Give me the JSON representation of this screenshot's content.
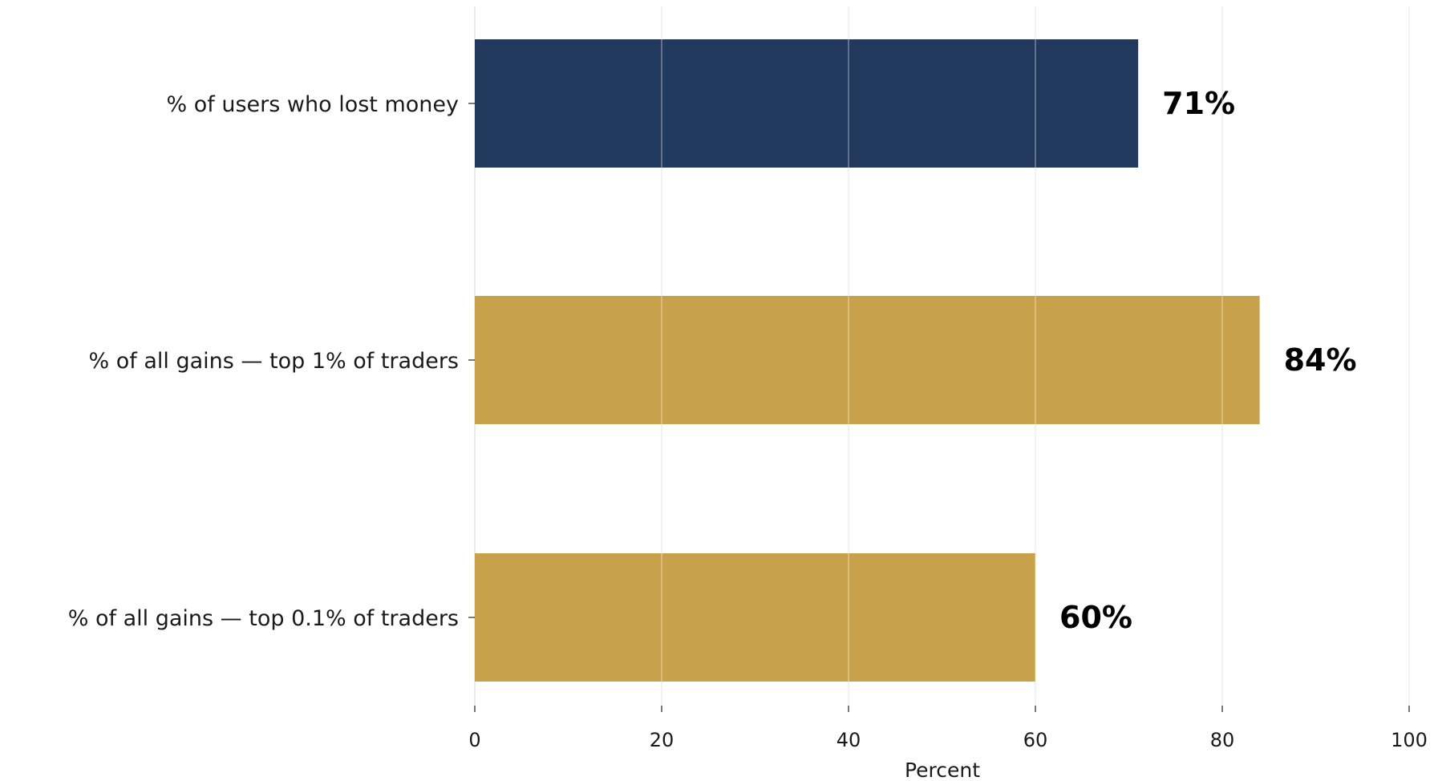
{
  "chart_data": {
    "type": "bar",
    "orientation": "horizontal",
    "categories": [
      "% of users who lost money",
      "% of all gains — top 1% of traders",
      "% of all gains — top 0.1% of traders"
    ],
    "values": [
      71,
      84,
      60
    ],
    "value_labels": [
      "71%",
      "84%",
      "60%"
    ],
    "bar_colors": [
      "#21395d",
      "#c8a24b",
      "#c8a24b"
    ],
    "xlabel": "Percent",
    "xlim": [
      0,
      100
    ],
    "xticks": [
      0,
      20,
      40,
      60,
      80,
      100
    ],
    "grid": "vertical",
    "gridline_color": "#dedede"
  }
}
